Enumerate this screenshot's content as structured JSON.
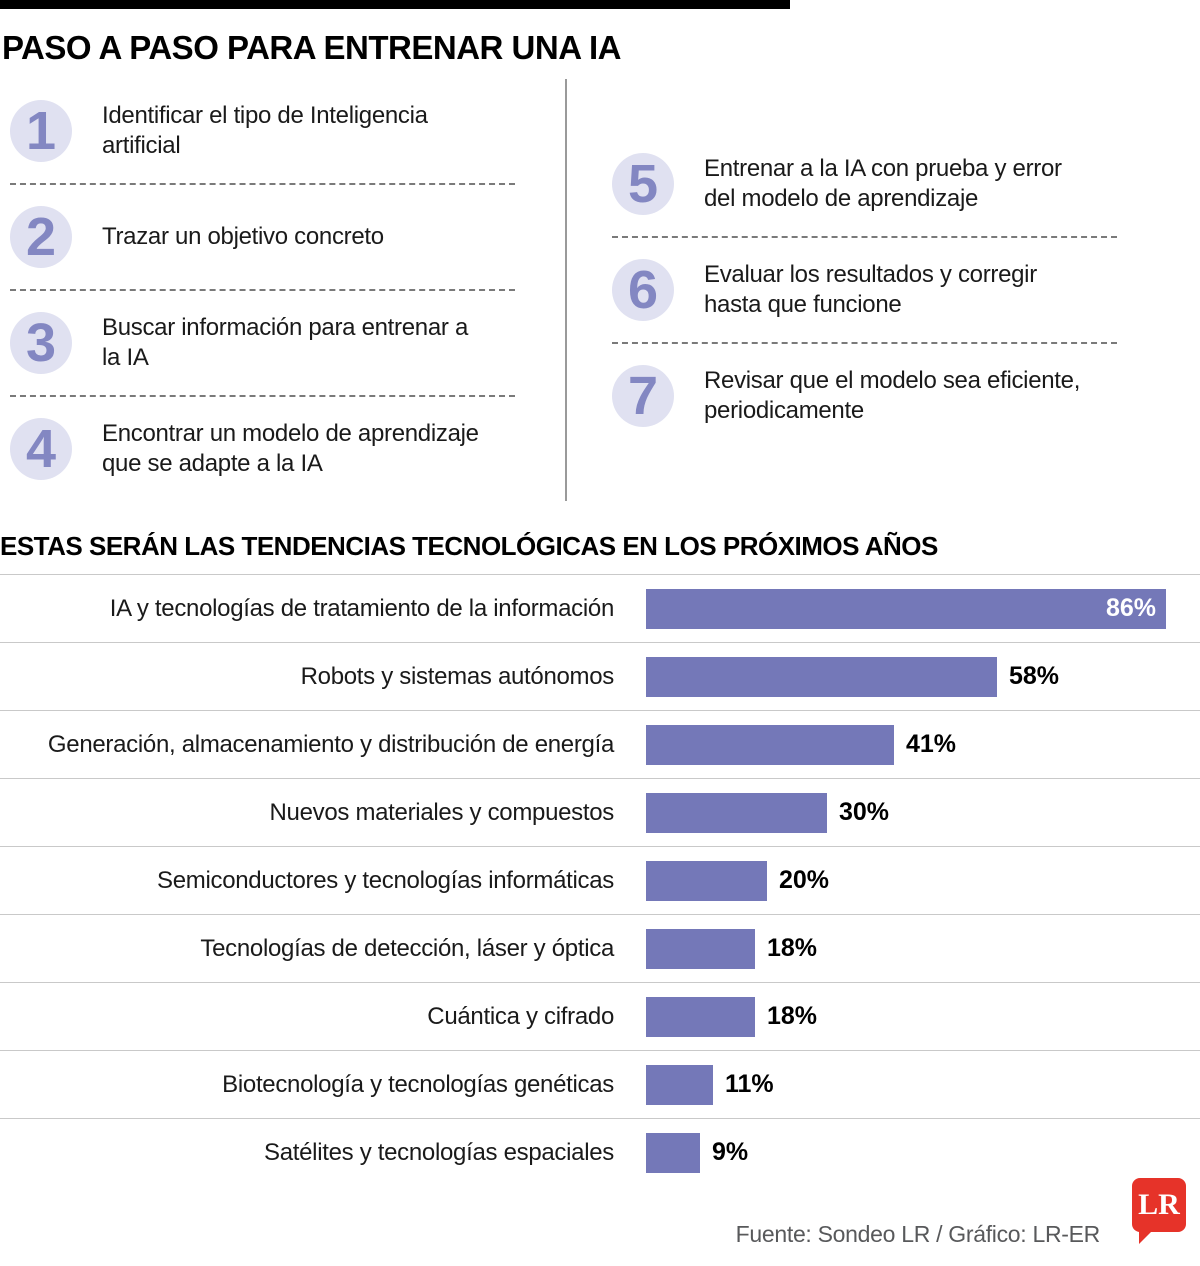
{
  "colors": {
    "bar_color": "#7478b8",
    "number_color": "#8387c2",
    "number_circle_bg": "#e0e1f1",
    "logo_red": "#e63329",
    "topbar_black": "#000000"
  },
  "steps_section": {
    "title": "PASO A PASO PARA ENTRENAR UNA IA",
    "left": [
      {
        "num": "1",
        "text": "Identificar el tipo de Inteligencia artificial"
      },
      {
        "num": "2",
        "text": "Trazar un objetivo concreto"
      },
      {
        "num": "3",
        "text": "Buscar información para entrenar a la IA"
      },
      {
        "num": "4",
        "text": "Encontrar un modelo de aprendizaje que se adapte a la IA"
      }
    ],
    "right": [
      {
        "num": "5",
        "text": "Entrenar a la IA con prueba y error del modelo de aprendizaje"
      },
      {
        "num": "6",
        "text": "Evaluar los resultados y corregir hasta que funcione"
      },
      {
        "num": "7",
        "text": "Revisar que el modelo sea eficiente, periodicamente"
      }
    ]
  },
  "chart_data": {
    "type": "bar",
    "orientation": "horizontal",
    "title": "ESTAS SERÁN LAS TENDENCIAS TECNOLÓGICAS EN LOS PRÓXIMOS AÑOS",
    "categories": [
      "IA y tecnologías de tratamiento de la información",
      "Robots y sistemas autónomos",
      "Generación, almacenamiento y distribución de energía",
      "Nuevos materiales y compuestos",
      "Semiconductores y tecnologías informáticas",
      "Tecnologías de detección, láser y óptica",
      "Cuántica y cifrado",
      "Biotecnología y tecnologías genéticas",
      "Satélites y tecnologías espaciales"
    ],
    "values": [
      86,
      58,
      41,
      30,
      20,
      18,
      18,
      11,
      9
    ],
    "value_suffix": "%",
    "xlim": [
      0,
      92
    ],
    "grid": false,
    "legend": "none",
    "bar_color": "#7478b8"
  },
  "footer": {
    "source": "Fuente: Sondeo LR / Gráfico: LR-ER",
    "logo_text": "LR"
  }
}
